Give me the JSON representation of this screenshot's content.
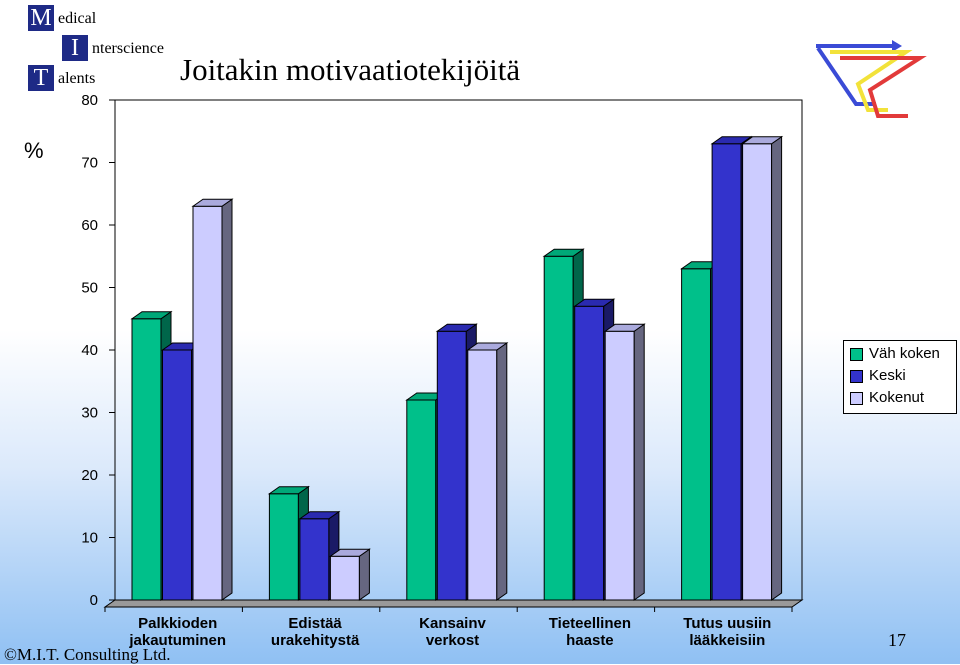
{
  "logo": {
    "letters": [
      "M",
      "I",
      "T"
    ],
    "words": [
      "edical",
      "nterscience",
      "alents"
    ]
  },
  "title": "Joitakin motivaatiotekijöitä",
  "unit_label": "%",
  "footer": "©M.I.T. Consulting Ltd.",
  "page_number": "17",
  "colors": {
    "series1": "#00c08a",
    "series2": "#3333cc",
    "series3": "#ccccff",
    "decor": [
      "#3a4bd6",
      "#f2e23a",
      "#e23a3a"
    ]
  },
  "chart_data": {
    "type": "bar",
    "categories": [
      [
        "Palkkioden",
        "jakautuminen"
      ],
      [
        "Edistää",
        "urakehitystä"
      ],
      [
        "Kansainv",
        "verkost"
      ],
      [
        "Tieteellinen",
        "haaste"
      ],
      [
        "Tutus uusiin",
        "lääkkeisiin"
      ]
    ],
    "series": [
      {
        "name": "Väh koken",
        "values": [
          45,
          17,
          32,
          55,
          53
        ]
      },
      {
        "name": "Keski",
        "values": [
          40,
          13,
          43,
          47,
          73
        ]
      },
      {
        "name": "Kokenut",
        "values": [
          63,
          7,
          40,
          43,
          73
        ]
      }
    ],
    "ylim": [
      0,
      80
    ],
    "yticks": [
      0,
      10,
      20,
      30,
      40,
      50,
      60,
      70,
      80
    ],
    "grid": false,
    "legend_position": "right",
    "three_d": true
  }
}
